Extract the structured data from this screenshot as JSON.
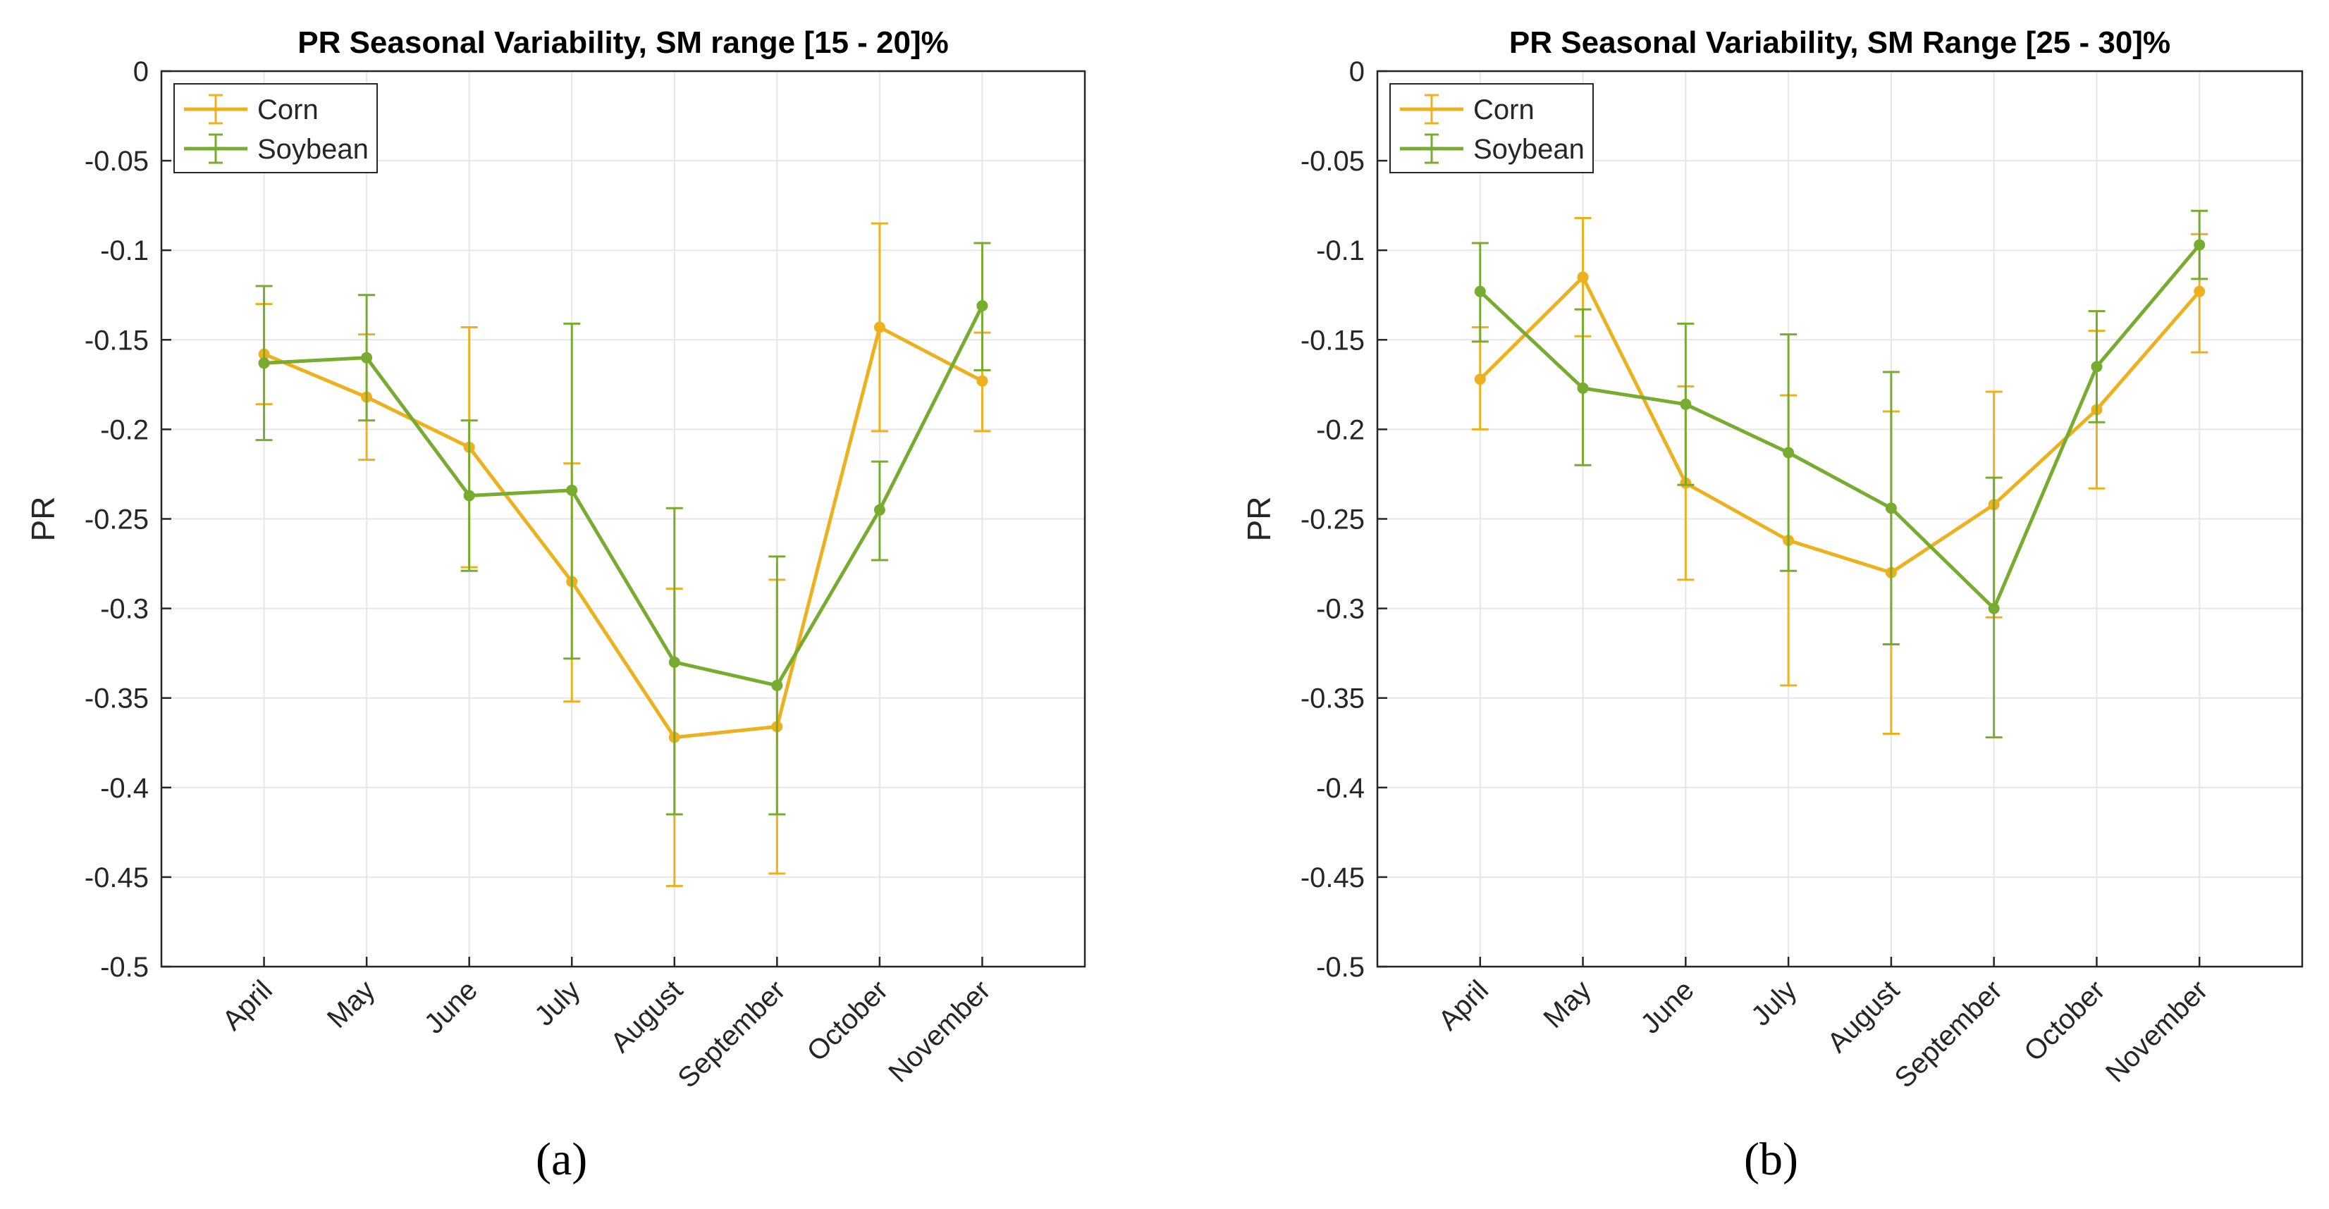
{
  "chart_data": [
    {
      "type": "line",
      "errorbars": true,
      "title": "PR Seasonal Variability, SM range [15 - 20]%",
      "xlabel": "",
      "ylabel": "PR",
      "ylim": [
        -0.5,
        0
      ],
      "yticks": [
        0,
        -0.05,
        -0.1,
        -0.15,
        -0.2,
        -0.25,
        -0.3,
        -0.35,
        -0.4,
        -0.45,
        -0.5
      ],
      "ytick_labels": [
        "0",
        "-0.05",
        "-0.1",
        "-0.15",
        "-0.2",
        "-0.25",
        "-0.3",
        "-0.35",
        "-0.4",
        "-0.45",
        "-0.5"
      ],
      "grid": true,
      "legend_position": "top-left",
      "categories": [
        "April",
        "May",
        "June",
        "July",
        "August",
        "September",
        "October",
        "November"
      ],
      "series": [
        {
          "name": "Corn",
          "color": "#EDB120",
          "values": [
            -0.158,
            -0.182,
            -0.21,
            -0.285,
            -0.372,
            -0.366,
            -0.143,
            -0.173
          ],
          "upper": [
            -0.13,
            -0.147,
            -0.143,
            -0.219,
            -0.289,
            -0.284,
            -0.085,
            -0.146
          ],
          "lower": [
            -0.186,
            -0.217,
            -0.277,
            -0.352,
            -0.455,
            -0.448,
            -0.201,
            -0.201
          ]
        },
        {
          "name": "Soybean",
          "color": "#77AC30",
          "values": [
            -0.163,
            -0.16,
            -0.237,
            -0.234,
            -0.33,
            -0.343,
            -0.245,
            -0.131
          ],
          "upper": [
            -0.12,
            -0.125,
            -0.195,
            -0.141,
            -0.244,
            -0.271,
            -0.218,
            -0.096
          ],
          "lower": [
            -0.206,
            -0.195,
            -0.279,
            -0.328,
            -0.415,
            -0.415,
            -0.273,
            -0.167
          ]
        }
      ]
    },
    {
      "type": "line",
      "errorbars": true,
      "title": "PR Seasonal Variability, SM Range [25 - 30]%",
      "xlabel": "",
      "ylabel": "PR",
      "ylim": [
        -0.5,
        0
      ],
      "yticks": [
        0,
        -0.05,
        -0.1,
        -0.15,
        -0.2,
        -0.25,
        -0.3,
        -0.35,
        -0.4,
        -0.45,
        -0.5
      ],
      "ytick_labels": [
        "0",
        "-0.05",
        "-0.1",
        "-0.15",
        "-0.2",
        "-0.25",
        "-0.3",
        "-0.35",
        "-0.4",
        "-0.45",
        "-0.5"
      ],
      "grid": true,
      "legend_position": "top-left",
      "categories": [
        "April",
        "May",
        "June",
        "July",
        "August",
        "September",
        "October",
        "November"
      ],
      "series": [
        {
          "name": "Corn",
          "color": "#EDB120",
          "values": [
            -0.172,
            -0.115,
            -0.23,
            -0.262,
            -0.28,
            -0.242,
            -0.189,
            -0.123
          ],
          "upper": [
            -0.143,
            -0.082,
            -0.176,
            -0.181,
            -0.19,
            -0.179,
            -0.145,
            -0.091
          ],
          "lower": [
            -0.2,
            -0.148,
            -0.284,
            -0.343,
            -0.37,
            -0.305,
            -0.233,
            -0.157
          ]
        },
        {
          "name": "Soybean",
          "color": "#77AC30",
          "values": [
            -0.123,
            -0.177,
            -0.186,
            -0.213,
            -0.244,
            -0.3,
            -0.165,
            -0.097
          ],
          "upper": [
            -0.096,
            -0.133,
            -0.141,
            -0.147,
            -0.168,
            -0.227,
            -0.134,
            -0.078
          ],
          "lower": [
            -0.151,
            -0.22,
            -0.231,
            -0.279,
            -0.32,
            -0.372,
            -0.196,
            -0.116
          ]
        }
      ]
    }
  ],
  "captions": {
    "a": "(a)",
    "b": "(b)"
  }
}
